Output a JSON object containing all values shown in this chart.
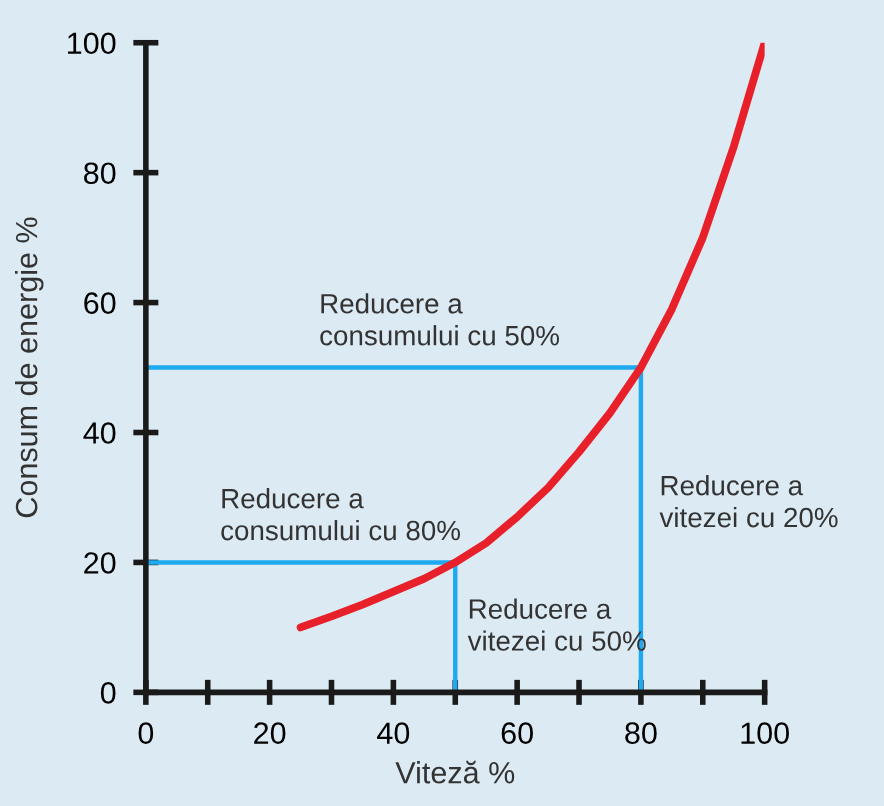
{
  "chart_data": {
    "type": "line",
    "xlabel": "Viteză %",
    "ylabel": "Consum de energie %",
    "xlim": [
      0,
      100
    ],
    "ylim": [
      0,
      100
    ],
    "xticks": [
      0,
      {
        "value": 10,
        "label": null
      },
      20,
      {
        "value": 30,
        "label": null
      },
      40,
      {
        "value": 50,
        "label": null
      },
      60,
      {
        "value": 70,
        "label": null
      },
      80,
      {
        "value": 90,
        "label": null
      },
      100
    ],
    "yticks": [
      0,
      20,
      40,
      60,
      80,
      100
    ],
    "grid": false,
    "marker": "none",
    "line_style": "solid",
    "series": [
      {
        "color": "#e8202a",
        "x": [
          25,
          30,
          35,
          40,
          45,
          50,
          55,
          60,
          65,
          70,
          75,
          80,
          85,
          90,
          95,
          100
        ],
        "values": [
          10,
          11.7,
          13.5,
          15.5,
          17.5,
          20,
          23,
          27,
          31.5,
          37,
          43,
          50,
          59,
          70,
          84,
          100
        ]
      },
      {
        "color": "#1eaaf1",
        "x": [
          0,
          80,
          80
        ],
        "values": [
          50,
          50,
          0
        ]
      },
      {
        "color": "#1eaaf1",
        "x": [
          0,
          50,
          50
        ],
        "values": [
          20,
          20,
          0
        ]
      }
    ],
    "annotations": [
      "Reducere a\nconsumului cu 50%",
      "Reducere a\nconsumului cu 80%",
      "Reducere a\nvitezei cu 50%",
      "Reducere a\nvitezei cu 20%"
    ]
  }
}
